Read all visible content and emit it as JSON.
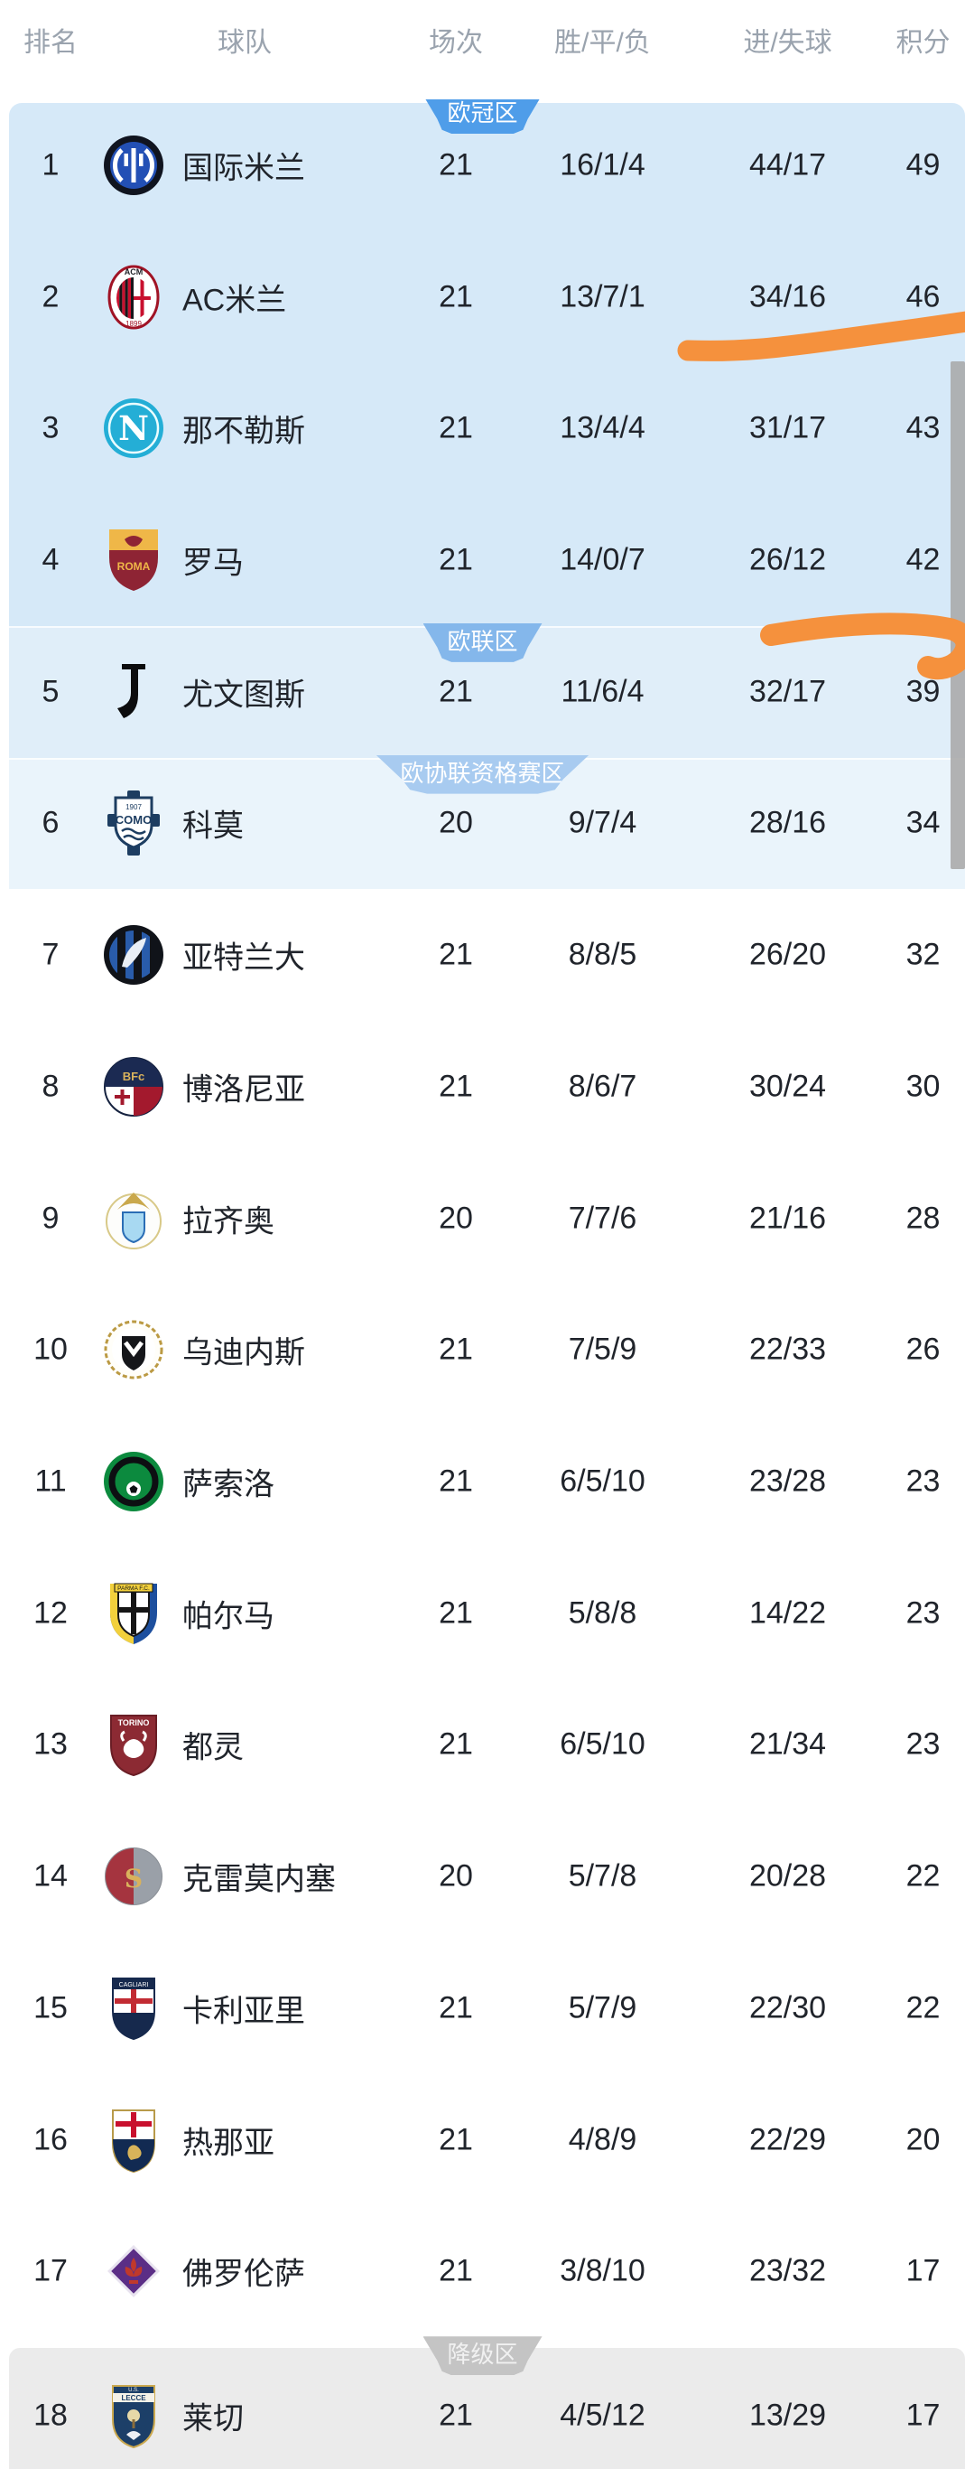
{
  "table": {
    "columns": [
      "排名",
      "球队",
      "场次",
      "胜/平/负",
      "进/失球",
      "积分"
    ],
    "zones": {
      "cl": "欧冠区",
      "el": "欧联区",
      "ecl": "欧协联资格赛区",
      "releg": "降级区"
    },
    "teams": [
      {
        "rank": "1",
        "name": "国际米兰",
        "played": "21",
        "wdl": "16/1/4",
        "goals": "44/17",
        "points": "49",
        "zone": "cl",
        "badge": true,
        "logo": "inter-milan-crest",
        "logo_text": []
      },
      {
        "rank": "2",
        "name": "AC米兰",
        "played": "21",
        "wdl": "13/7/1",
        "goals": "34/16",
        "points": "46",
        "zone": "cl",
        "badge": false,
        "logo": "ac-milan-crest",
        "logo_text": [
          "ACM",
          "1899"
        ]
      },
      {
        "rank": "3",
        "name": "那不勒斯",
        "played": "21",
        "wdl": "13/4/4",
        "goals": "31/17",
        "points": "43",
        "zone": "cl",
        "badge": false,
        "logo": "napoli-crest",
        "logo_text": [
          "N"
        ]
      },
      {
        "rank": "4",
        "name": "罗马",
        "played": "21",
        "wdl": "14/0/7",
        "goals": "26/12",
        "points": "42",
        "zone": "cl",
        "badge": false,
        "logo": "roma-crest",
        "logo_text": [
          "ROMA"
        ]
      },
      {
        "rank": "5",
        "name": "尤文图斯",
        "played": "21",
        "wdl": "11/6/4",
        "goals": "32/17",
        "points": "39",
        "zone": "el",
        "badge": true,
        "logo": "juventus-crest",
        "logo_text": []
      },
      {
        "rank": "6",
        "name": "科莫",
        "played": "20",
        "wdl": "9/7/4",
        "goals": "28/16",
        "points": "34",
        "zone": "ecl",
        "badge": true,
        "logo": "como-crest",
        "logo_text": [
          "1907",
          "COMO"
        ]
      },
      {
        "rank": "7",
        "name": "亚特兰大",
        "played": "21",
        "wdl": "8/8/5",
        "goals": "26/20",
        "points": "32",
        "zone": "",
        "badge": false,
        "logo": "atalanta-crest",
        "logo_text": []
      },
      {
        "rank": "8",
        "name": "博洛尼亚",
        "played": "21",
        "wdl": "8/6/7",
        "goals": "30/24",
        "points": "30",
        "zone": "",
        "badge": false,
        "logo": "bologna-crest",
        "logo_text": [
          "BFc"
        ]
      },
      {
        "rank": "9",
        "name": "拉齐奥",
        "played": "20",
        "wdl": "7/7/6",
        "goals": "21/16",
        "points": "28",
        "zone": "",
        "badge": false,
        "logo": "lazio-crest",
        "logo_text": []
      },
      {
        "rank": "10",
        "name": "乌迪内斯",
        "played": "21",
        "wdl": "7/5/9",
        "goals": "22/33",
        "points": "26",
        "zone": "",
        "badge": false,
        "logo": "udinese-crest",
        "logo_text": []
      },
      {
        "rank": "11",
        "name": "萨索洛",
        "played": "21",
        "wdl": "6/5/10",
        "goals": "23/28",
        "points": "23",
        "zone": "",
        "badge": false,
        "logo": "sassuolo-crest",
        "logo_text": []
      },
      {
        "rank": "12",
        "name": "帕尔马",
        "played": "21",
        "wdl": "5/8/8",
        "goals": "14/22",
        "points": "23",
        "zone": "",
        "badge": false,
        "logo": "parma-crest",
        "logo_text": [
          "PARMA F.C."
        ]
      },
      {
        "rank": "13",
        "name": "都灵",
        "played": "21",
        "wdl": "6/5/10",
        "goals": "21/34",
        "points": "23",
        "zone": "",
        "badge": false,
        "logo": "torino-crest",
        "logo_text": [
          "TORINO"
        ]
      },
      {
        "rank": "14",
        "name": "克雷莫内塞",
        "played": "20",
        "wdl": "5/7/8",
        "goals": "20/28",
        "points": "22",
        "zone": "",
        "badge": false,
        "logo": "cremonese-crest",
        "logo_text": [
          "S"
        ]
      },
      {
        "rank": "15",
        "name": "卡利亚里",
        "played": "21",
        "wdl": "5/7/9",
        "goals": "22/30",
        "points": "22",
        "zone": "",
        "badge": false,
        "logo": "cagliari-crest",
        "logo_text": [
          "CAGLIARI"
        ]
      },
      {
        "rank": "16",
        "name": "热那亚",
        "played": "21",
        "wdl": "4/8/9",
        "goals": "22/29",
        "points": "20",
        "zone": "",
        "badge": false,
        "logo": "genoa-crest",
        "logo_text": []
      },
      {
        "rank": "17",
        "name": "佛罗伦萨",
        "played": "21",
        "wdl": "3/8/10",
        "goals": "23/32",
        "points": "17",
        "zone": "",
        "badge": false,
        "logo": "fiorentina-crest",
        "logo_text": []
      },
      {
        "rank": "18",
        "name": "莱切",
        "played": "21",
        "wdl": "4/5/12",
        "goals": "13/29",
        "points": "17",
        "zone": "releg",
        "badge": true,
        "logo": "lecce-crest",
        "logo_text": [
          "U.S.",
          "LECCE"
        ]
      }
    ]
  },
  "annotations": {
    "marker_color": "#f5913d",
    "strokes": [
      "hand-drawn-line-under-rank-2",
      "hand-drawn-line-under-rank-4"
    ]
  },
  "scrollbar": {
    "color": "#a8a8a8"
  },
  "colors": {
    "row_bg_cl": "#d6e9f8",
    "row_bg_el": "#e0eef9",
    "row_bg_ecl": "#eaf4fb",
    "row_bg_releg": "#ebebeb",
    "badge_cl": "#4f9de9",
    "badge_el": "#84b7eb",
    "badge_ecl": "#a8cbf0",
    "badge_releg": "#c4c4c4",
    "header_text": "#9aa3ae",
    "body_text": "#20242b"
  }
}
